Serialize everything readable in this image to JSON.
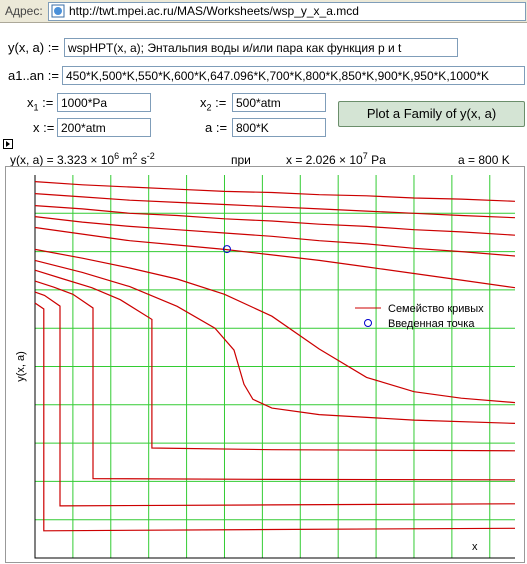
{
  "address_bar": {
    "label": "Адрес:",
    "url": "http://twt.mpei.ac.ru/MAS/Worksheets/wsp_y_x_a.mcd"
  },
  "form": {
    "func_label": "y(x, a) :=",
    "func_value": "wspHPT(x, a);  Энтальпия воды и/или пара как функция p и t",
    "params_label": "a1..an :=",
    "params_value": "450*K,500*K,550*K,600*K,647.096*K,700*K,800*K,850*K,900*K,950*K,1000*K",
    "x1_base": "x",
    "x1_sub": "1",
    "x1_assign": ":=",
    "x1_value": "1000*Pa",
    "x2_base": "x",
    "x2_sub": "2",
    "x2_assign": ":=",
    "x2_value": "500*atm",
    "x_label": "x :=",
    "x_value": "200*atm",
    "a_label": "a :=",
    "a_value": "800*K",
    "button": "Plot a Family of y(x, a)"
  },
  "result": {
    "y_text": "y(x, a) = 3.323 × 10",
    "y_exp": "6",
    "y_unit1": " m",
    "y_unit1_exp": "2",
    "y_unit2": " s",
    "y_unit2_exp": "-2",
    "at": "при",
    "x_text": "x = 2.026 × 10",
    "x_exp": "7",
    "x_unit": " Pa",
    "a_text": "a = 800 K"
  },
  "chart_data": {
    "type": "line",
    "y_axis_label": "y(x, a)",
    "x_axis_label": "x",
    "xlim": [
      1000,
      50662500
    ],
    "ylim": [
      500000,
      4000000
    ],
    "xticks": [
      4000000,
      8000000,
      12000000,
      16000000,
      20000000,
      24000000,
      28000000,
      32000000,
      36000000,
      40000000,
      44000000,
      48000000
    ],
    "yticks": [
      850000,
      1200000,
      1550000,
      1900000,
      2250000,
      2600000,
      2950000,
      3300000,
      3650000
    ],
    "grid": true,
    "grid_color": "#33cc33",
    "tick_labels": false,
    "legend_position": "right",
    "series_legend": "Семейство кривых",
    "series_color": "#cc0000",
    "series": [
      {
        "x": [
          1000,
          932000,
          932000,
          25000000,
          50662500
        ],
        "values": [
          2830000,
          2775000,
          749000,
          760000,
          771000
        ]
      },
      {
        "x": [
          1000,
          1000000,
          2640000,
          2640000,
          25000000,
          50662500
        ],
        "values": [
          2930000,
          2900000,
          2802000,
          976000,
          985000,
          995000
        ]
      },
      {
        "x": [
          1000,
          2000000,
          4000000,
          6120000,
          6120000,
          25000000,
          50662500
        ],
        "values": [
          3030000,
          2975000,
          2910000,
          2785000,
          1226000,
          1218000,
          1215000
        ]
      },
      {
        "x": [
          1000,
          3000000,
          6000000,
          9000000,
          12340000,
          12340000,
          25000000,
          50662500
        ],
        "values": [
          3130000,
          3050000,
          2970000,
          2860000,
          2680000,
          1505000,
          1490000,
          1480000
        ]
      },
      {
        "x": [
          1000,
          5000000,
          10000000,
          15000000,
          19000000,
          21000000,
          22064000,
          23000000,
          25000000,
          30000000,
          40000000,
          50662500
        ],
        "values": [
          3220000,
          3110000,
          2980000,
          2800000,
          2600000,
          2400000,
          2087000,
          1950000,
          1870000,
          1810000,
          1760000,
          1730000
        ]
      },
      {
        "x": [
          1000,
          5000000,
          10000000,
          15000000,
          20000000,
          25000000,
          30000000,
          35000000,
          40000000,
          45000000,
          50662500
        ],
        "values": [
          3320000,
          3240000,
          3150000,
          3050000,
          2910000,
          2710000,
          2410000,
          2150000,
          2020000,
          1960000,
          1920000
        ]
      },
      {
        "x": [
          1000,
          5000000,
          10000000,
          15000000,
          20000000,
          25000000,
          30000000,
          35000000,
          40000000,
          45000000,
          50662500
        ],
        "values": [
          3520000,
          3460000,
          3400000,
          3360000,
          3320000,
          3270000,
          3220000,
          3160000,
          3100000,
          3040000,
          2970000
        ]
      },
      {
        "x": [
          1000,
          5000000,
          10000000,
          15000000,
          20000000,
          25000000,
          30000000,
          35000000,
          40000000,
          45000000,
          50662500
        ],
        "values": [
          3620000,
          3570000,
          3530000,
          3500000,
          3470000,
          3440000,
          3400000,
          3370000,
          3330000,
          3300000,
          3260000
        ]
      },
      {
        "x": [
          1000,
          5000000,
          10000000,
          15000000,
          20000000,
          25000000,
          30000000,
          35000000,
          40000000,
          45000000,
          50662500
        ],
        "values": [
          3720000,
          3690000,
          3650000,
          3630000,
          3600000,
          3580000,
          3550000,
          3530000,
          3500000,
          3480000,
          3450000
        ]
      },
      {
        "x": [
          1000,
          5000000,
          10000000,
          15000000,
          20000000,
          25000000,
          30000000,
          35000000,
          40000000,
          45000000,
          50662500
        ],
        "values": [
          3830000,
          3800000,
          3770000,
          3750000,
          3730000,
          3710000,
          3690000,
          3670000,
          3650000,
          3630000,
          3610000
        ]
      },
      {
        "x": [
          1000,
          5000000,
          10000000,
          15000000,
          20000000,
          25000000,
          30000000,
          35000000,
          40000000,
          45000000,
          50662500
        ],
        "values": [
          3940000,
          3910000,
          3890000,
          3870000,
          3850000,
          3840000,
          3820000,
          3810000,
          3790000,
          3780000,
          3760000
        ]
      }
    ],
    "point": {
      "name": "Введенная точка",
      "x": 20260000,
      "y": 3323000,
      "color": "#0000cc"
    }
  }
}
